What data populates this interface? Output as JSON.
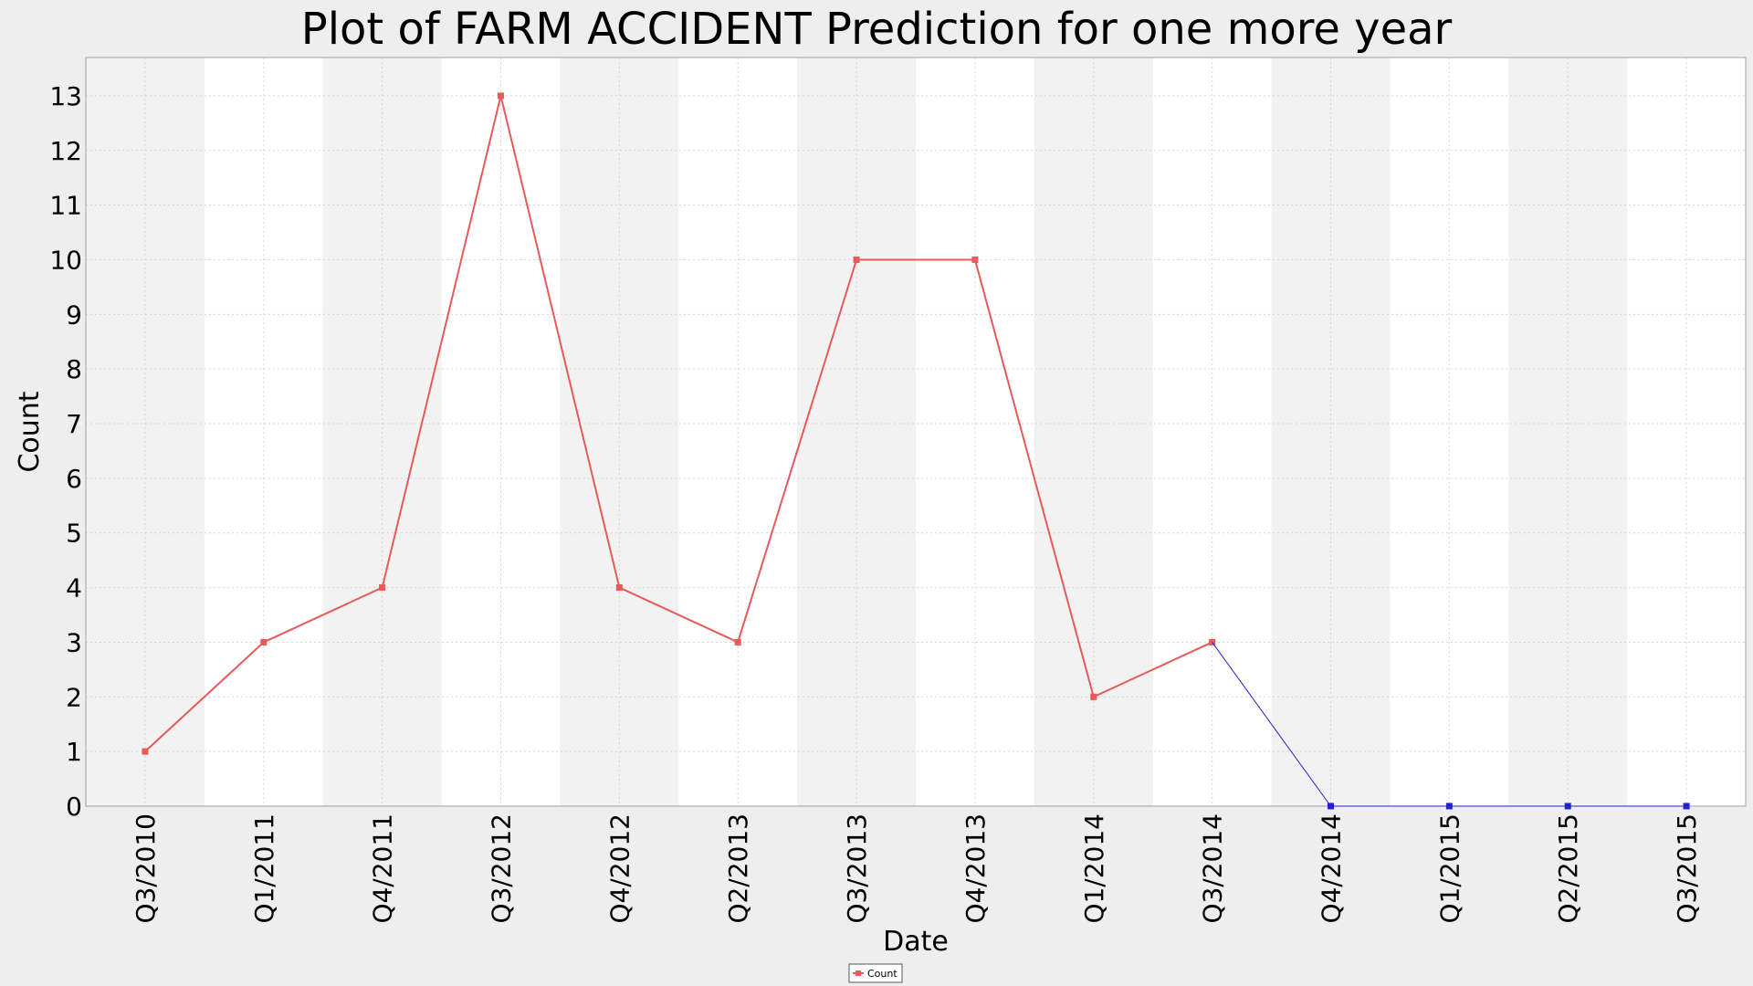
{
  "chart_data": {
    "type": "line",
    "title": "Plot of FARM ACCIDENT Prediction for one more year",
    "xlabel": "Date",
    "ylabel": "Count",
    "categories": [
      "Q3/2010",
      "Q1/2011",
      "Q4/2011",
      "Q3/2012",
      "Q4/2012",
      "Q2/2013",
      "Q3/2013",
      "Q4/2013",
      "Q1/2014",
      "Q3/2014",
      "Q4/2014",
      "Q1/2015",
      "Q2/2015",
      "Q3/2015"
    ],
    "series": [
      {
        "name": "Count",
        "role": "observed",
        "color": "#e85a5a",
        "x": [
          "Q3/2010",
          "Q1/2011",
          "Q4/2011",
          "Q3/2012",
          "Q4/2012",
          "Q2/2013",
          "Q3/2013",
          "Q4/2013",
          "Q1/2014",
          "Q3/2014"
        ],
        "values": [
          1,
          3,
          4,
          13,
          4,
          3,
          10,
          10,
          2,
          3
        ]
      },
      {
        "role": "prediction",
        "color": "#2222cc",
        "x": [
          "Q3/2014",
          "Q4/2014",
          "Q1/2015",
          "Q2/2015",
          "Q3/2015"
        ],
        "values": [
          3,
          0,
          0,
          0,
          0
        ]
      }
    ],
    "ylim": [
      0,
      13.7
    ],
    "yticks": [
      0,
      1,
      2,
      3,
      4,
      5,
      6,
      7,
      8,
      9,
      10,
      11,
      12,
      13
    ],
    "grid": true,
    "alternating_band_colors": [
      "#f2f2f2",
      "#ffffff"
    ],
    "legend": {
      "position": "bottom-center",
      "entries": [
        "Count"
      ]
    }
  }
}
